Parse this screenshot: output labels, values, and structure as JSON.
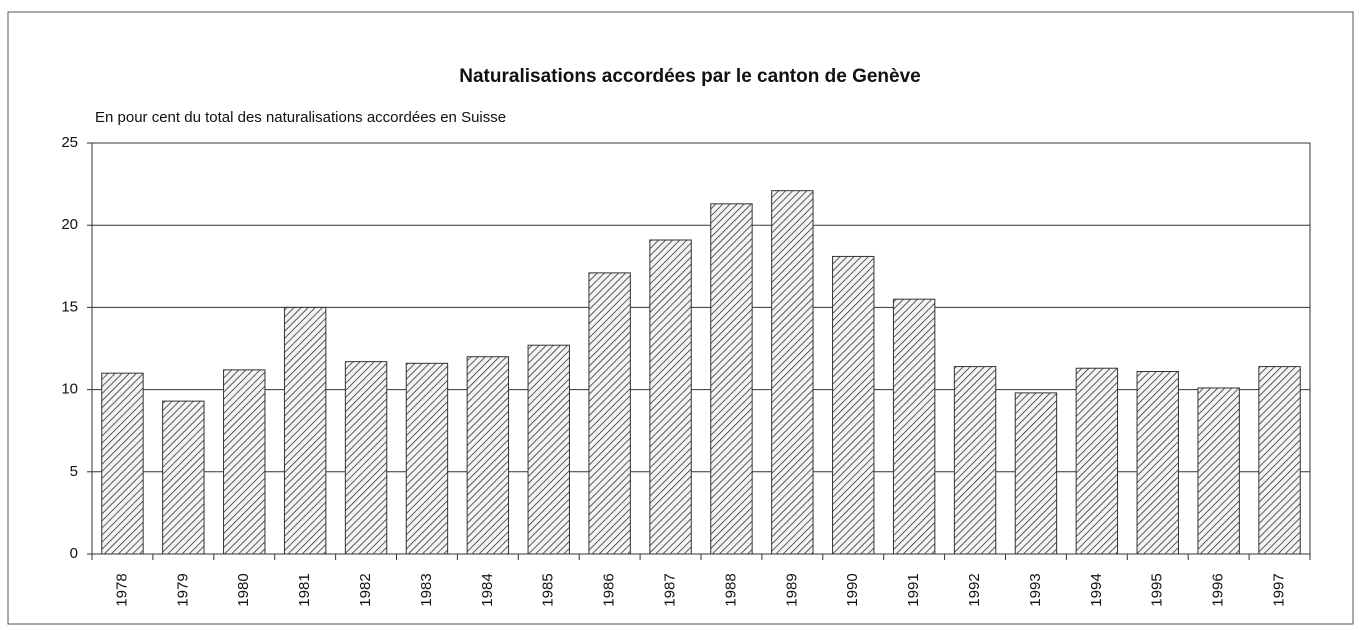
{
  "chart_data": {
    "type": "bar",
    "title": "Naturalisations accordées par le canton de Genève",
    "subtitle": "En pour cent du total des naturalisations accordées en Suisse",
    "categories": [
      "1978",
      "1979",
      "1980",
      "1981",
      "1982",
      "1983",
      "1984",
      "1985",
      "1986",
      "1987",
      "1988",
      "1989",
      "1990",
      "1991",
      "1992",
      "1993",
      "1994",
      "1995",
      "1996",
      "1997"
    ],
    "values": [
      11.0,
      9.3,
      11.2,
      15.0,
      11.7,
      11.6,
      12.0,
      12.7,
      17.1,
      19.1,
      21.3,
      22.1,
      18.1,
      15.5,
      11.4,
      9.8,
      11.3,
      11.1,
      10.1,
      11.4
    ],
    "color": "#333333",
    "ylim": [
      0,
      25
    ],
    "yticks": [
      0,
      5,
      10,
      15,
      20,
      25
    ],
    "grid": true
  }
}
